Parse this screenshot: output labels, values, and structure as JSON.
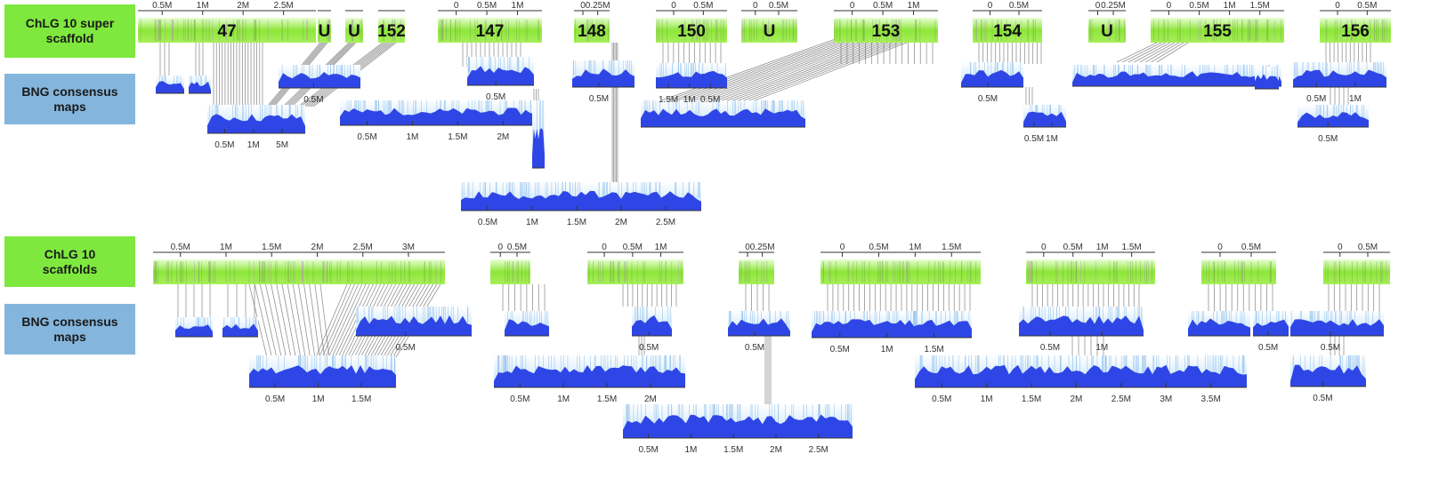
{
  "colors": {
    "scaffold_green": "#8ee63a",
    "map_blue": "#2f46e6",
    "map_light": "#bfe0fb",
    "link_gray": "#6e6e6e",
    "label_green": "#7ee83e",
    "label_blue": "#84b6dd"
  },
  "labels": {
    "top_scaffold": "ChLG 10 super\nscaffold",
    "top_maps": "BNG consensus\nmaps",
    "bottom_scaffold": "ChLG 10\nscaffolds",
    "bottom_maps": "BNG consensus\nmaps"
  },
  "top_row": {
    "segments": [
      {
        "label": "47",
        "ticks": [
          "0.5M",
          "1M",
          "2M",
          "2.5M"
        ]
      },
      {
        "label": "U",
        "ticks": []
      },
      {
        "label": "U",
        "ticks": []
      },
      {
        "label": "152",
        "ticks": []
      },
      {
        "label": "147",
        "ticks": [
          "0",
          "0.5M",
          "1M"
        ]
      },
      {
        "label": "148",
        "ticks": [
          "0",
          "0.25M"
        ]
      },
      {
        "label": "150",
        "ticks": [
          "0",
          "0.5M"
        ]
      },
      {
        "label": "U",
        "ticks": [
          "0",
          "0.5M"
        ]
      },
      {
        "label": "153",
        "ticks": [
          "0",
          "0.5M",
          "1M"
        ]
      },
      {
        "label": "154",
        "ticks": [
          "0",
          "0.5M"
        ]
      },
      {
        "label": "U",
        "ticks": [
          "0",
          "0.25M"
        ]
      },
      {
        "label": "155",
        "ticks": [
          "0",
          "0.5M",
          "1M",
          "1.5M"
        ]
      },
      {
        "label": "156",
        "ticks": [
          "0",
          "0.5M"
        ]
      }
    ],
    "maps": [
      {
        "ticks": []
      },
      {
        "ticks": []
      },
      {
        "ticks": [
          "0.5M"
        ]
      },
      {
        "ticks": [
          "0.5M",
          "1M",
          "5M"
        ]
      },
      {
        "ticks": [
          "0.5M",
          "1M",
          "1.5M",
          "2M"
        ]
      },
      {
        "ticks": [
          "0.5M"
        ]
      },
      {
        "ticks": [
          "0.5M"
        ]
      },
      {
        "ticks": []
      },
      {
        "ticks": [
          "0.5M",
          "1M",
          "1.5M",
          "2M",
          "2.5M"
        ]
      },
      {
        "ticks": [
          "0.5M"
        ]
      },
      {
        "ticks": [
          "1.5M",
          "1M",
          "0.5M"
        ]
      },
      {
        "ticks": [
          "0.5M"
        ]
      },
      {
        "ticks": []
      },
      {
        "ticks": [
          "0.5M",
          "1M"
        ]
      },
      {
        "ticks": []
      },
      {
        "ticks": [
          "0.5M",
          "1M"
        ]
      },
      {
        "ticks": [
          "0.5M"
        ]
      }
    ]
  },
  "bottom_row": {
    "segments": [
      {
        "label": "",
        "ticks": [
          "0.5M",
          "1M",
          "1.5M",
          "2M",
          "2.5M",
          "3M"
        ]
      },
      {
        "label": "",
        "ticks": [
          "0",
          "0.5M"
        ]
      },
      {
        "label": "",
        "ticks": [
          "0",
          "0.5M",
          "1M"
        ]
      },
      {
        "label": "",
        "ticks": [
          "0",
          "0.25M"
        ]
      },
      {
        "label": "",
        "ticks": [
          "0",
          "0.5M",
          "1M",
          "1.5M"
        ]
      },
      {
        "label": "",
        "ticks": [
          "0",
          "0.5M",
          "1M",
          "1.5M"
        ]
      },
      {
        "label": "",
        "ticks": [
          "0",
          "0.5M"
        ]
      },
      {
        "label": "",
        "ticks": [
          "0",
          "0.5M"
        ]
      }
    ],
    "maps": [
      {
        "ticks": []
      },
      {
        "ticks": []
      },
      {
        "ticks": [
          "0.5M"
        ]
      },
      {
        "ticks": [
          "0.5M",
          "1M",
          "1.5M"
        ]
      },
      {
        "ticks": []
      },
      {
        "ticks": [
          "0.5M",
          "1M",
          "1.5M",
          "2M"
        ]
      },
      {
        "ticks": [
          "0.5M"
        ]
      },
      {
        "ticks": [
          "0.5M"
        ]
      },
      {
        "ticks": [
          "0.5M",
          "1M",
          "1.5M",
          "2M",
          "2.5M"
        ]
      },
      {
        "ticks": [
          "0.5M",
          "1M",
          "1.5M"
        ]
      },
      {
        "ticks": [
          "0.5M",
          "1M"
        ]
      },
      {
        "ticks": [
          "0.5M",
          "1M",
          "1.5M",
          "2M",
          "2.5M",
          "3M",
          "3.5M"
        ]
      },
      {
        "ticks": []
      },
      {
        "ticks": [
          "0.5M"
        ]
      },
      {
        "ticks": [
          "0.5M"
        ]
      },
      {
        "ticks": [
          "0.5M"
        ]
      }
    ]
  }
}
